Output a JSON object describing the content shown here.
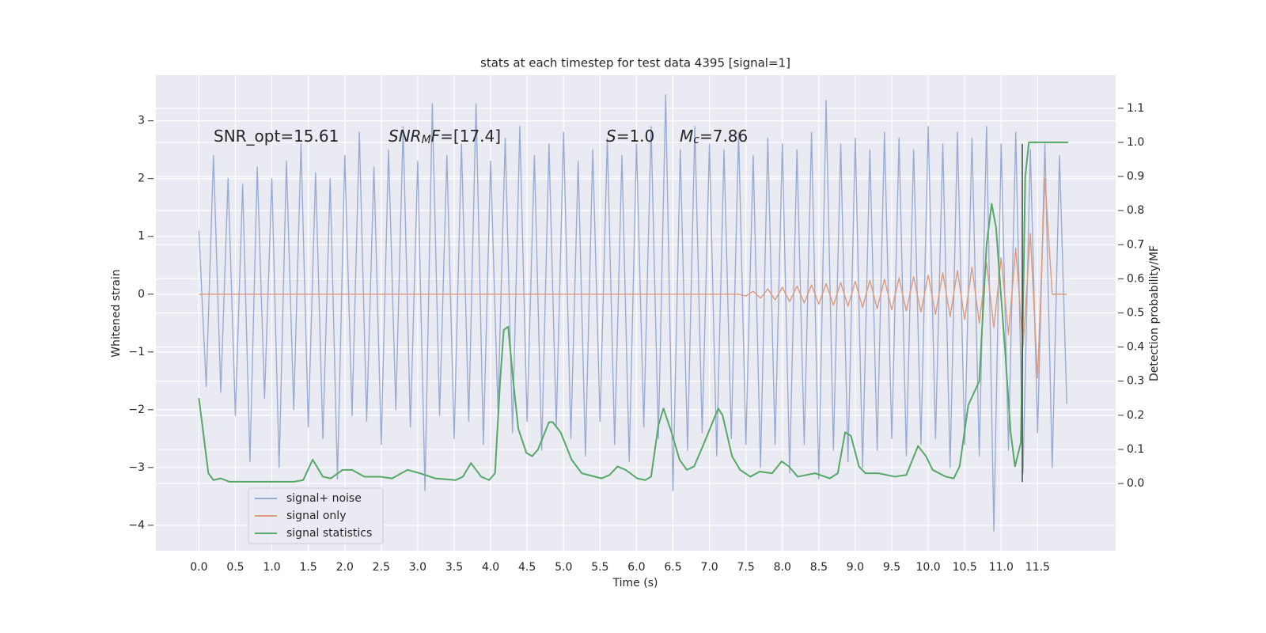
{
  "chart_data": {
    "type": "line",
    "title": "stats at each timestep for test data 4395 [signal=1]",
    "xlabel": "Time (s)",
    "ylabel": "Whitened strain",
    "y2label": "Detection probability/MF",
    "grid": true,
    "legend": "lower left",
    "xlim": [
      -0.59,
      12.57
    ],
    "ylim": [
      -4.44,
      3.79
    ],
    "y2lim": [
      -0.197,
      1.197
    ],
    "xticks": [
      {
        "value": 0,
        "label": "0.0"
      },
      0.5,
      {
        "value": 1,
        "label": "1.0"
      },
      1.5,
      {
        "value": 2,
        "label": "2.0"
      },
      2.5,
      {
        "value": 3,
        "label": "3.0"
      },
      3.5,
      {
        "value": 4,
        "label": "4.0"
      },
      4.5,
      {
        "value": 5,
        "label": "5.0"
      },
      5.5,
      {
        "value": 6,
        "label": "6.0"
      },
      6.5,
      {
        "value": 7,
        "label": "7.0"
      },
      7.5,
      {
        "value": 8,
        "label": "8.0"
      },
      8.5,
      {
        "value": 9,
        "label": "9.0"
      },
      9.5,
      {
        "value": 10,
        "label": "10.0"
      },
      10.5,
      {
        "value": 11,
        "label": "11.0"
      },
      11.5
    ],
    "yticks": [
      {
        "value": -4,
        "label": "−4"
      },
      {
        "value": -3,
        "label": "−3"
      },
      {
        "value": -2,
        "label": "−2"
      },
      {
        "value": -1,
        "label": "−1"
      },
      0,
      1,
      2,
      3
    ],
    "y2ticks": [
      {
        "value": 0,
        "label": "0.0"
      },
      0.1,
      0.2,
      0.3,
      0.4,
      0.5,
      0.6,
      0.7,
      0.8,
      0.9,
      {
        "value": 1,
        "label": "1.0"
      },
      1.1
    ],
    "x": [
      0,
      0.1,
      0.2,
      0.3,
      0.4,
      0.5,
      0.6,
      0.7,
      0.8,
      0.9,
      1,
      1.1,
      1.2,
      1.3,
      1.4,
      1.5,
      1.6,
      1.7,
      1.8,
      1.9,
      2,
      2.1,
      2.2,
      2.3,
      2.4,
      2.5,
      2.6,
      2.7,
      2.8,
      2.9,
      3,
      3.1,
      3.2,
      3.3,
      3.4,
      3.5,
      3.6,
      3.7,
      3.8,
      3.9,
      4,
      4.1,
      4.2,
      4.3,
      4.4,
      4.5,
      4.6,
      4.7,
      4.8,
      4.9,
      5,
      5.1,
      5.2,
      5.3,
      5.4,
      5.5,
      5.6,
      5.7,
      5.8,
      5.9,
      6,
      6.1,
      6.2,
      6.3,
      6.4,
      6.5,
      6.6,
      6.7,
      6.8,
      6.9,
      7,
      7.1,
      7.2,
      7.3,
      7.4,
      7.5,
      7.6,
      7.7,
      7.8,
      7.9,
      8,
      8.1,
      8.2,
      8.3,
      8.4,
      8.5,
      8.6,
      8.7,
      8.8,
      8.9,
      9,
      9.1,
      9.2,
      9.3,
      9.4,
      9.5,
      9.6,
      9.7,
      9.8,
      9.9,
      10,
      10.1,
      10.2,
      10.3,
      10.4,
      10.5,
      10.6,
      10.7,
      10.8,
      10.9,
      11,
      11.1,
      11.2,
      11.3,
      11.4,
      11.5,
      11.6,
      11.7,
      11.8,
      11.9
    ],
    "series": [
      {
        "name": "signal+ noise",
        "color": "#9aabd2",
        "values": [
          1.1,
          -1.6,
          2.4,
          -1.7,
          2.0,
          -2.1,
          1.9,
          -2.9,
          2.2,
          -1.8,
          2.0,
          -3.0,
          2.3,
          -2.0,
          2.6,
          -2.3,
          2.1,
          -2.5,
          2.0,
          -3.2,
          2.4,
          -2.1,
          2.8,
          -2.2,
          2.2,
          -2.6,
          2.5,
          -2.0,
          2.9,
          -2.3,
          2.3,
          -3.4,
          3.3,
          -2.1,
          2.4,
          -2.5,
          2.6,
          -2.2,
          3.3,
          -2.6,
          2.3,
          -2.0,
          2.7,
          -2.4,
          2.9,
          -2.2,
          2.4,
          -2.7,
          2.6,
          -2.3,
          2.8,
          -2.5,
          2.3,
          -2.8,
          2.5,
          -2.2,
          2.7,
          -2.6,
          2.4,
          -2.9,
          2.6,
          -2.3,
          2.9,
          -2.5,
          3.45,
          -3.4,
          2.5,
          -2.7,
          2.9,
          -2.4,
          2.6,
          -2.8,
          2.5,
          -2.5,
          2.8,
          -2.6,
          2.4,
          -3.0,
          2.7,
          -2.6,
          2.6,
          -3.1,
          2.5,
          -2.6,
          2.8,
          -3.2,
          3.35,
          -2.7,
          2.6,
          -2.9,
          2.7,
          -3.0,
          2.5,
          -2.7,
          2.8,
          -2.5,
          2.7,
          -2.8,
          2.5,
          -2.6,
          2.9,
          -2.5,
          2.6,
          -3.0,
          2.8,
          -2.6,
          2.7,
          -2.8,
          2.9,
          -4.1,
          2.6,
          -2.7,
          2.8,
          -3.1,
          2.5,
          -2.4,
          2.6,
          -3.0,
          2.4,
          -1.9
        ]
      },
      {
        "name": "signal only",
        "color": "#dd9a7c",
        "values": [
          0,
          0,
          0,
          0,
          0,
          0,
          0,
          0,
          0,
          0,
          0,
          0,
          0,
          0,
          0,
          0,
          0,
          0,
          0,
          0,
          0,
          0,
          0,
          0,
          0,
          0,
          0,
          0,
          0,
          0,
          0,
          0,
          0,
          0,
          0,
          0,
          0,
          0,
          0,
          0,
          0,
          0,
          0,
          0,
          0,
          0,
          0,
          0,
          0,
          0,
          0,
          0,
          0,
          0,
          0,
          0,
          0,
          0,
          0,
          0,
          0,
          0,
          0,
          0,
          0,
          0,
          0,
          0,
          0,
          0,
          0,
          0,
          0,
          0,
          0,
          -0.03,
          0.05,
          -0.07,
          0.09,
          -0.1,
          0.12,
          -0.13,
          0.14,
          -0.15,
          0.16,
          -0.17,
          0.18,
          -0.19,
          0.2,
          -0.21,
          0.22,
          -0.23,
          0.24,
          -0.25,
          0.26,
          -0.27,
          0.28,
          -0.29,
          0.3,
          -0.31,
          0.33,
          -0.35,
          0.37,
          -0.39,
          0.41,
          -0.44,
          0.47,
          -0.5,
          0.54,
          -0.58,
          0.63,
          -0.7,
          0.8,
          -0.9,
          1.05,
          -1.45,
          2.0,
          0,
          0,
          0
        ]
      },
      {
        "name": "signal statistics",
        "color": "#55a868",
        "axis": "y2",
        "x": [
          0,
          0.13,
          0.2,
          0.3,
          0.42,
          0.75,
          1.3,
          1.43,
          1.56,
          1.7,
          1.81,
          1.97,
          2.1,
          2.27,
          2.48,
          2.65,
          2.86,
          3.03,
          3.24,
          3.52,
          3.62,
          3.73,
          3.87,
          3.98,
          4.06,
          4.13,
          4.18,
          4.24,
          4.31,
          4.38,
          4.49,
          4.57,
          4.65,
          4.8,
          4.85,
          4.96,
          5.11,
          5.25,
          5.52,
          5.63,
          5.74,
          5.85,
          6.01,
          6.12,
          6.2,
          6.3,
          6.37,
          6.48,
          6.59,
          6.69,
          6.79,
          6.93,
          7.12,
          7.18,
          7.31,
          7.42,
          7.56,
          7.69,
          7.86,
          7.99,
          8.09,
          8.21,
          8.45,
          8.65,
          8.76,
          8.86,
          8.94,
          9.05,
          9.14,
          9.32,
          9.54,
          9.7,
          9.86,
          9.97,
          10.06,
          10.24,
          10.35,
          10.43,
          10.55,
          10.7,
          10.8,
          10.87,
          10.93,
          11.05,
          11.13,
          11.19,
          11.27,
          11.33,
          11.38,
          11.92
        ],
        "values": [
          0.25,
          0.03,
          0.01,
          0.015,
          0.005,
          0.005,
          0.005,
          0.01,
          0.07,
          0.02,
          0.015,
          0.04,
          0.04,
          0.02,
          0.02,
          0.015,
          0.04,
          0.03,
          0.015,
          0.01,
          0.02,
          0.06,
          0.02,
          0.01,
          0.03,
          0.3,
          0.45,
          0.46,
          0.3,
          0.16,
          0.09,
          0.08,
          0.1,
          0.18,
          0.18,
          0.15,
          0.07,
          0.03,
          0.015,
          0.025,
          0.05,
          0.04,
          0.015,
          0.01,
          0.02,
          0.17,
          0.22,
          0.15,
          0.07,
          0.04,
          0.05,
          0.12,
          0.22,
          0.2,
          0.08,
          0.04,
          0.02,
          0.035,
          0.03,
          0.065,
          0.05,
          0.02,
          0.03,
          0.015,
          0.03,
          0.15,
          0.14,
          0.05,
          0.03,
          0.03,
          0.02,
          0.025,
          0.11,
          0.08,
          0.04,
          0.02,
          0.015,
          0.05,
          0.23,
          0.3,
          0.7,
          0.82,
          0.75,
          0.4,
          0.15,
          0.05,
          0.12,
          0.9,
          1.0,
          1.0
        ]
      }
    ],
    "vlines": [
      {
        "x": 11.29,
        "ymin": -3.25,
        "ymax": 2.6,
        "color": "#3a4a3a"
      }
    ],
    "annotations": [
      {
        "parts": [
          {
            "text": "SNR_opt=15.61"
          }
        ]
      },
      {
        "parts": [
          {
            "text": "SNR",
            "style": "italic"
          },
          {
            "text": "M",
            "style": "italic sub"
          },
          {
            "text": "F",
            "style": "italic"
          },
          {
            "text": "=[17.4]"
          }
        ]
      },
      {
        "parts": [
          {
            "text": "S",
            "style": "italic"
          },
          {
            "text": "=1.0"
          }
        ]
      },
      {
        "parts": [
          {
            "text": "M",
            "style": "italic"
          },
          {
            "text": "c",
            "style": "italic sub"
          },
          {
            "text": "=7.86"
          }
        ]
      }
    ]
  }
}
